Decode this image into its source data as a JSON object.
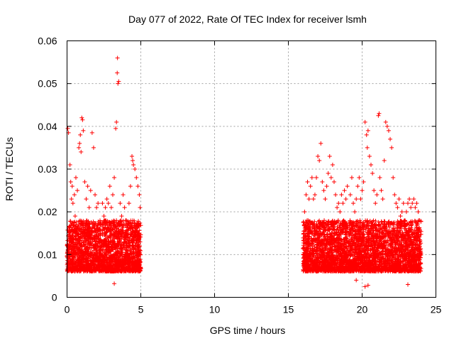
{
  "chart_data": {
    "type": "scatter",
    "title": "Day 077 of 2022, Rate Of TEC Index for receiver lsmh",
    "xlabel": "GPS time / hours",
    "ylabel": "ROTI / TECUs",
    "xlim": [
      0,
      25
    ],
    "ylim": [
      0,
      0.06
    ],
    "x_ticks": [
      0,
      5,
      10,
      15,
      20,
      25
    ],
    "y_ticks": [
      0,
      0.01,
      0.02,
      0.03,
      0.04,
      0.05,
      0.06
    ],
    "x_tick_labels": [
      "0",
      "5",
      "10",
      "15",
      "20",
      "25"
    ],
    "y_tick_labels": [
      "0",
      "0.01",
      "0.02",
      "0.03",
      "0.04",
      "0.05",
      "0.06"
    ],
    "grid": true,
    "marker": "+",
    "color": "#ff0000",
    "series": [
      {
        "points": [
          [
            0.05,
            0.0395
          ],
          [
            0.1,
            0.0385
          ],
          [
            0.2,
            0.031
          ],
          [
            0.25,
            0.027
          ],
          [
            0.3,
            0.023
          ],
          [
            0.35,
            0.026
          ],
          [
            0.4,
            0.022
          ],
          [
            0.5,
            0.024
          ],
          [
            0.55,
            0.019
          ],
          [
            0.6,
            0.028
          ],
          [
            0.7,
            0.025
          ],
          [
            0.8,
            0.035
          ],
          [
            0.85,
            0.036
          ],
          [
            0.9,
            0.038
          ],
          [
            0.95,
            0.034
          ],
          [
            1.0,
            0.042
          ],
          [
            1.05,
            0.0415
          ],
          [
            1.1,
            0.039
          ],
          [
            1.2,
            0.027
          ],
          [
            1.3,
            0.023
          ],
          [
            1.4,
            0.026
          ],
          [
            1.5,
            0.021
          ],
          [
            1.6,
            0.025
          ],
          [
            1.7,
            0.0385
          ],
          [
            1.8,
            0.035
          ],
          [
            1.9,
            0.024
          ],
          [
            2.0,
            0.021
          ],
          [
            2.1,
            0.022
          ],
          [
            2.2,
            0.016
          ],
          [
            2.4,
            0.022
          ],
          [
            2.5,
            0.019
          ],
          [
            2.6,
            0.021
          ],
          [
            2.7,
            0.023
          ],
          [
            2.8,
            0.022
          ],
          [
            2.9,
            0.026
          ],
          [
            3.0,
            0.021
          ],
          [
            3.1,
            0.024
          ],
          [
            3.2,
            0.028
          ],
          [
            3.3,
            0.0395
          ],
          [
            3.35,
            0.041
          ],
          [
            3.4,
            0.0525
          ],
          [
            3.42,
            0.056
          ],
          [
            3.45,
            0.05
          ],
          [
            3.5,
            0.0505
          ],
          [
            3.6,
            0.022
          ],
          [
            3.7,
            0.019
          ],
          [
            3.8,
            0.024
          ],
          [
            3.9,
            0.021
          ],
          [
            4.0,
            0.018
          ],
          [
            4.2,
            0.022
          ],
          [
            4.3,
            0.026
          ],
          [
            4.4,
            0.033
          ],
          [
            4.45,
            0.032
          ],
          [
            4.5,
            0.031
          ],
          [
            4.6,
            0.03
          ],
          [
            4.7,
            0.028
          ],
          [
            4.8,
            0.026
          ],
          [
            4.9,
            0.024
          ],
          [
            4.95,
            0.021
          ],
          [
            16.1,
            0.02
          ],
          [
            16.2,
            0.024
          ],
          [
            16.3,
            0.027
          ],
          [
            16.4,
            0.023
          ],
          [
            16.5,
            0.026
          ],
          [
            16.6,
            0.028
          ],
          [
            16.7,
            0.023
          ],
          [
            16.8,
            0.024
          ],
          [
            16.9,
            0.028
          ],
          [
            17.0,
            0.033
          ],
          [
            17.1,
            0.032
          ],
          [
            17.2,
            0.036
          ],
          [
            17.3,
            0.027
          ],
          [
            17.4,
            0.025
          ],
          [
            17.5,
            0.023
          ],
          [
            17.6,
            0.026
          ],
          [
            17.7,
            0.029
          ],
          [
            17.8,
            0.033
          ],
          [
            17.9,
            0.028
          ],
          [
            18.0,
            0.031
          ],
          [
            18.1,
            0.027
          ],
          [
            18.2,
            0.024
          ],
          [
            18.3,
            0.021
          ],
          [
            18.4,
            0.022
          ],
          [
            18.5,
            0.02
          ],
          [
            18.6,
            0.024
          ],
          [
            18.7,
            0.022
          ],
          [
            18.8,
            0.025
          ],
          [
            18.9,
            0.023
          ],
          [
            19.0,
            0.026
          ],
          [
            19.2,
            0.024
          ],
          [
            19.3,
            0.028
          ],
          [
            19.4,
            0.022
          ],
          [
            19.5,
            0.02
          ],
          [
            19.6,
            0.023
          ],
          [
            19.7,
            0.026
          ],
          [
            19.8,
            0.028
          ],
          [
            19.9,
            0.023
          ],
          [
            20.0,
            0.025
          ],
          [
            20.1,
            0.027
          ],
          [
            20.2,
            0.041
          ],
          [
            20.3,
            0.038
          ],
          [
            20.35,
            0.035
          ],
          [
            20.4,
            0.039
          ],
          [
            20.5,
            0.033
          ],
          [
            20.6,
            0.031
          ],
          [
            20.7,
            0.029
          ],
          [
            20.8,
            0.025
          ],
          [
            20.9,
            0.022
          ],
          [
            21.0,
            0.024
          ],
          [
            21.1,
            0.0425
          ],
          [
            21.15,
            0.043
          ],
          [
            21.2,
            0.028
          ],
          [
            21.3,
            0.025
          ],
          [
            21.4,
            0.023
          ],
          [
            21.5,
            0.032
          ],
          [
            21.6,
            0.041
          ],
          [
            21.7,
            0.04
          ],
          [
            21.8,
            0.039
          ],
          [
            21.9,
            0.037
          ],
          [
            22.0,
            0.035
          ],
          [
            22.1,
            0.028
          ],
          [
            22.2,
            0.024
          ],
          [
            22.3,
            0.022
          ],
          [
            22.4,
            0.021
          ],
          [
            22.5,
            0.023
          ],
          [
            22.6,
            0.019
          ],
          [
            22.7,
            0.02
          ],
          [
            22.8,
            0.022
          ],
          [
            22.9,
            0.018
          ],
          [
            23.0,
            0.02
          ],
          [
            23.1,
            0.022
          ],
          [
            23.2,
            0.023
          ],
          [
            23.3,
            0.021
          ],
          [
            23.4,
            0.022
          ],
          [
            23.5,
            0.023
          ],
          [
            23.6,
            0.021
          ],
          [
            23.7,
            0.022
          ],
          [
            23.8,
            0.02
          ],
          [
            23.9,
            0.018
          ]
        ],
        "dense_band": {
          "segments": [
            {
              "x_range": [
                0,
                5
              ],
              "y_range": [
                0.004,
                0.018
              ]
            },
            {
              "x_range": [
                16,
                24
              ],
              "y_range": [
                0.004,
                0.018
              ]
            }
          ],
          "minimum_points": [
            [
              3.2,
              0.0032
            ],
            [
              19.6,
              0.004
            ],
            [
              20.2,
              0.0025
            ],
            [
              20.4,
              0.0028
            ],
            [
              23.1,
              0.003
            ]
          ]
        }
      }
    ]
  }
}
